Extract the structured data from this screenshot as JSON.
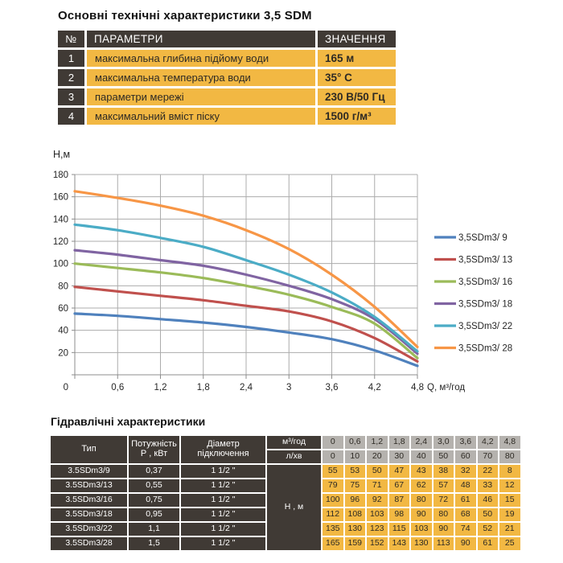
{
  "title": "Основні технічні характеристики 3,5 SDM",
  "colors": {
    "dark": "#403A35",
    "yellow": "#F2B843",
    "gray": "#B5B2AE",
    "grid": "#ACACAC",
    "axis": "#8C8C8C",
    "text": "#262626"
  },
  "specs_table": {
    "headers": {
      "num": "№",
      "param": "ПАРАМЕТРИ",
      "value": "ЗНАЧЕННЯ"
    },
    "rows": [
      {
        "num": "1",
        "param": "максимальна глибина підйому води",
        "value": "165 м"
      },
      {
        "num": "2",
        "param": "максимальна температура води",
        "value": "35° С"
      },
      {
        "num": "3",
        "param": "параметри мережі",
        "value": "230 В/50 Гц"
      },
      {
        "num": "4",
        "param": "максимальний вміст піску",
        "value": "1500 г/м³"
      }
    ]
  },
  "chart_data": {
    "type": "line",
    "title": "",
    "ylabel": "Н,м",
    "xlabel": "Q, м³/год",
    "x": [
      0,
      0.6,
      1.2,
      1.8,
      2.4,
      3.0,
      3.6,
      4.2,
      4.8
    ],
    "x_tick_labels": [
      "0",
      "0,6",
      "1,2",
      "1,8",
      "2,4",
      "3",
      "3,6",
      "4,2",
      "4,8"
    ],
    "xlim": [
      0,
      4.8
    ],
    "ylim": [
      0,
      180
    ],
    "y_tick_step": 20,
    "grid": true,
    "legend_position": "right",
    "series": [
      {
        "name": "3,5SDm3/ 9",
        "color": "#4F81BD",
        "values": [
          55,
          53,
          50,
          47,
          43,
          38,
          32,
          22,
          8
        ]
      },
      {
        "name": "3,5SDm3/ 13",
        "color": "#C0504D",
        "values": [
          79,
          75,
          71,
          67,
          62,
          57,
          48,
          33,
          12
        ]
      },
      {
        "name": "3,5SDm3/ 16",
        "color": "#9BBB59",
        "values": [
          100,
          96,
          92,
          87,
          80,
          72,
          61,
          46,
          15
        ]
      },
      {
        "name": "3,5SDm3/ 18",
        "color": "#8064A2",
        "values": [
          112,
          108,
          103,
          98,
          90,
          80,
          68,
          50,
          19
        ]
      },
      {
        "name": "3,5SDm3/ 22",
        "color": "#4BACC6",
        "values": [
          135,
          130,
          123,
          115,
          103,
          90,
          74,
          52,
          21
        ]
      },
      {
        "name": "3,5SDm3/ 28",
        "color": "#F79646",
        "values": [
          165,
          159,
          152,
          143,
          130,
          113,
          90,
          61,
          25
        ]
      }
    ]
  },
  "hydro_table": {
    "title": "Гідравлічні характеристики",
    "col_headers": {
      "type": "Тип",
      "power": "Потужність\nР , кВт",
      "diameter": "Діаметр\nпідключення",
      "flow_m3": "м³/год",
      "flow_lmin": "л/хв",
      "head": "Н , м"
    },
    "flow_m3_values": [
      "0",
      "0,6",
      "1,2",
      "1,8",
      "2,4",
      "3,0",
      "3,6",
      "4,2",
      "4,8"
    ],
    "flow_lmin_values": [
      "0",
      "10",
      "20",
      "30",
      "40",
      "50",
      "60",
      "70",
      "80"
    ],
    "rows": [
      {
        "type": "3.5SDm3/9",
        "power": "0,37",
        "diameter": "1 1/2 \"",
        "heads": [
          "55",
          "53",
          "50",
          "47",
          "43",
          "38",
          "32",
          "22",
          "8"
        ]
      },
      {
        "type": "3.5SDm3/13",
        "power": "0,55",
        "diameter": "1 1/2 \"",
        "heads": [
          "79",
          "75",
          "71",
          "67",
          "62",
          "57",
          "48",
          "33",
          "12"
        ]
      },
      {
        "type": "3.5SDm3/16",
        "power": "0,75",
        "diameter": "1 1/2 \"",
        "heads": [
          "100",
          "96",
          "92",
          "87",
          "80",
          "72",
          "61",
          "46",
          "15"
        ]
      },
      {
        "type": "3.5SDm3/18",
        "power": "0,95",
        "diameter": "1 1/2 \"",
        "heads": [
          "112",
          "108",
          "103",
          "98",
          "90",
          "80",
          "68",
          "50",
          "19"
        ]
      },
      {
        "type": "3.5SDm3/22",
        "power": "1,1",
        "diameter": "1 1/2 \"",
        "heads": [
          "135",
          "130",
          "123",
          "115",
          "103",
          "90",
          "74",
          "52",
          "21"
        ]
      },
      {
        "type": "3.5SDm3/28",
        "power": "1,5",
        "diameter": "1 1/2 \"",
        "heads": [
          "165",
          "159",
          "152",
          "143",
          "130",
          "113",
          "90",
          "61",
          "25"
        ]
      }
    ]
  }
}
